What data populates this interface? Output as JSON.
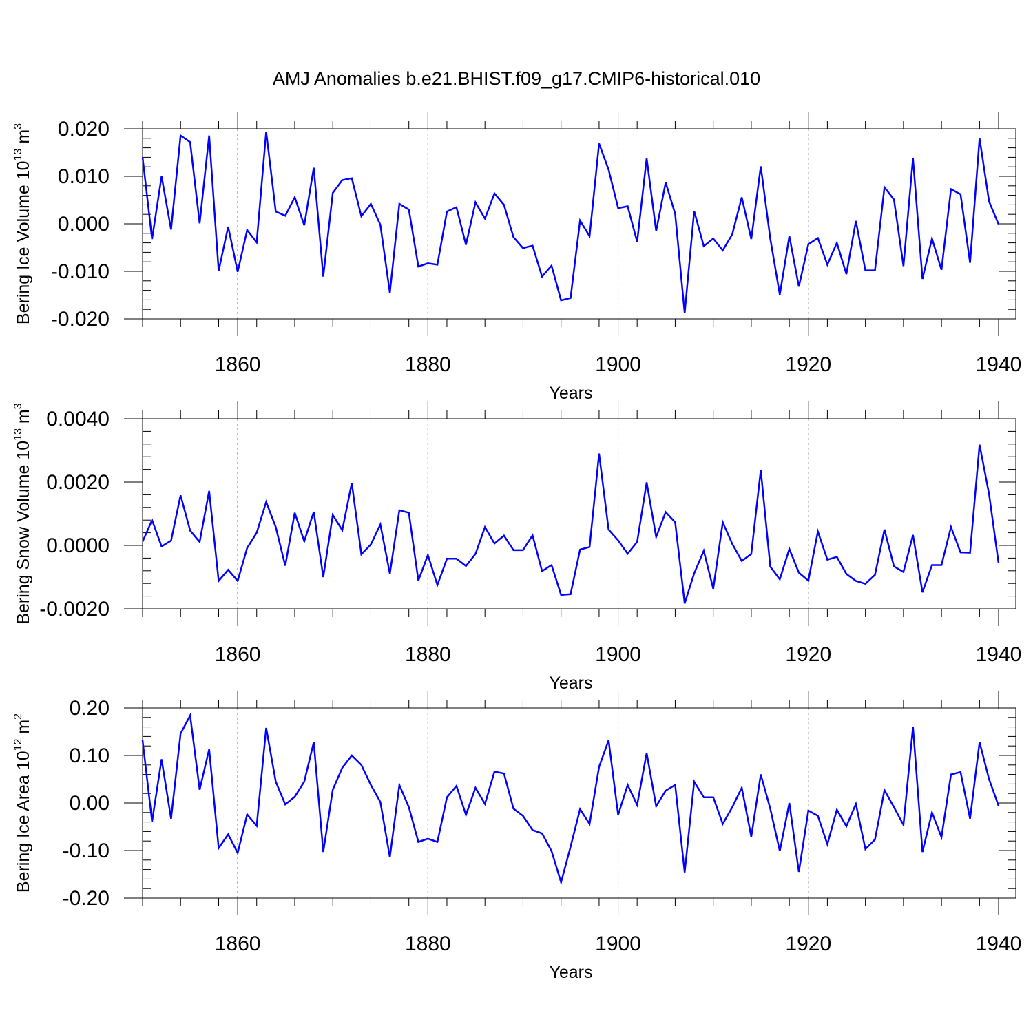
{
  "figure_title": "AMJ Anomalies b.e21.BHIST.f09_g17.CMIP6-historical.010",
  "colors": {
    "line": "#0000ff",
    "axis": "#000000",
    "grid": "#555555"
  },
  "chart_data": [
    {
      "type": "line",
      "ylabel": "Bering Ice Volume",
      "units": {
        "base": "10",
        "exp": "13",
        "unit": "m",
        "unit_exp": "3"
      },
      "xlabel": "Years",
      "xlim": [
        1850,
        1940
      ],
      "ylim": [
        -0.02,
        0.02
      ],
      "yticks": [
        -0.02,
        -0.01,
        0.0,
        0.01,
        0.02
      ],
      "ytick_labels": [
        "-0.020",
        "-0.010",
        "0.000",
        "0.010",
        "0.020"
      ],
      "xticks": [
        1860,
        1880,
        1900,
        1920,
        1940
      ],
      "xtick_labels": [
        "1860",
        "1880",
        "1900",
        "1920",
        "1940"
      ],
      "grid_x": [
        1860,
        1880,
        1900,
        1920
      ],
      "x_start": 1850,
      "values": [
        0.014,
        -0.0032,
        0.01,
        -0.0012,
        0.0186,
        0.0172,
        0.0001,
        0.0186,
        -0.0099,
        -0.0006,
        -0.0101,
        -0.0013,
        -0.0039,
        0.0194,
        0.0026,
        0.0017,
        0.0056,
        -0.0003,
        0.0118,
        -0.0111,
        0.0065,
        0.0092,
        0.0096,
        0.0016,
        0.0042,
        -0.0002,
        -0.0145,
        0.0042,
        0.003,
        -0.009,
        -0.0083,
        -0.0086,
        0.0026,
        0.0035,
        -0.0044,
        0.0045,
        0.0011,
        0.0064,
        0.004,
        -0.0028,
        -0.0051,
        -0.0046,
        -0.0111,
        -0.0088,
        -0.0161,
        -0.0156,
        0.0007,
        -0.0026,
        0.0169,
        0.0114,
        0.0033,
        0.0037,
        -0.0038,
        0.0138,
        -0.0015,
        0.0087,
        0.0021,
        -0.0188,
        0.0027,
        -0.0047,
        -0.0031,
        -0.0056,
        -0.0022,
        0.0056,
        -0.0032,
        0.0121,
        -0.0031,
        -0.0149,
        -0.0026,
        -0.0132,
        -0.0043,
        -0.003,
        -0.0086,
        -0.004,
        -0.0106,
        0.0006,
        -0.0098,
        -0.0098,
        0.0077,
        0.0051,
        -0.0089,
        0.0138,
        -0.0116,
        -0.0031,
        -0.0097,
        0.0073,
        0.0062,
        -0.0082,
        0.018,
        0.0047,
        -0.0001
      ]
    },
    {
      "type": "line",
      "ylabel": "Bering Snow Volume",
      "units": {
        "base": "10",
        "exp": "13",
        "unit": "m",
        "unit_exp": "3"
      },
      "xlabel": "Years",
      "xlim": [
        1850,
        1940
      ],
      "ylim": [
        -0.002,
        0.004
      ],
      "yticks": [
        -0.002,
        0.0,
        0.002,
        0.004
      ],
      "ytick_labels": [
        "-0.0020",
        "0.0000",
        "0.0020",
        "0.0040"
      ],
      "xticks": [
        1860,
        1880,
        1900,
        1920,
        1940
      ],
      "xtick_labels": [
        "1860",
        "1880",
        "1900",
        "1920",
        "1940"
      ],
      "grid_x": [
        1860,
        1880,
        1900,
        1920
      ],
      "x_start": 1850,
      "values": [
        0.00012,
        0.0008,
        -3e-05,
        0.00015,
        0.00158,
        0.00047,
        0.00011,
        0.00172,
        -0.00112,
        -0.00077,
        -0.00112,
        -8e-05,
        0.0004,
        0.00137,
        0.00058,
        -0.00064,
        0.00103,
        0.00013,
        0.00106,
        -0.001,
        0.00096,
        0.00048,
        0.00197,
        -0.00028,
        3e-05,
        0.00066,
        -0.00089,
        0.00111,
        0.00103,
        -0.00111,
        -0.0003,
        -0.00125,
        -0.00042,
        -0.00042,
        -0.00065,
        -0.00027,
        0.00058,
        6e-05,
        0.00031,
        -0.00015,
        -0.00015,
        0.00032,
        -0.00081,
        -0.00062,
        -0.00156,
        -0.00154,
        -0.00013,
        -5e-05,
        0.0029,
        0.0005,
        0.00016,
        -0.00026,
        0.00011,
        0.00199,
        0.00027,
        0.00105,
        0.00073,
        -0.00183,
        -0.00088,
        -0.00017,
        -0.00137,
        0.00073,
        5e-05,
        -0.00049,
        -0.00027,
        0.00238,
        -0.00067,
        -0.00107,
        -0.00011,
        -0.00086,
        -0.00111,
        0.00044,
        -0.00045,
        -0.00036,
        -0.0009,
        -0.00112,
        -0.00121,
        -0.00093,
        0.0005,
        -0.00066,
        -0.00084,
        0.00033,
        -0.00148,
        -0.00062,
        -0.00062,
        0.00058,
        -0.00022,
        -0.00023,
        0.00318,
        0.00162,
        -0.00056
      ]
    },
    {
      "type": "line",
      "ylabel": "Bering Ice Area",
      "units": {
        "base": "10",
        "exp": "12",
        "unit": "m",
        "unit_exp": "2"
      },
      "xlabel": "Years",
      "xlim": [
        1850,
        1940
      ],
      "ylim": [
        -0.2,
        0.2
      ],
      "yticks": [
        -0.2,
        -0.1,
        0.0,
        0.1,
        0.2
      ],
      "ytick_labels": [
        "-0.20",
        "-0.10",
        "0.00",
        "0.10",
        "0.20"
      ],
      "xticks": [
        1860,
        1880,
        1900,
        1920,
        1940
      ],
      "xtick_labels": [
        "1860",
        "1880",
        "1900",
        "1920",
        "1940"
      ],
      "grid_x": [
        1860,
        1880,
        1900,
        1920
      ],
      "x_start": 1850,
      "values": [
        0.132,
        -0.039,
        0.092,
        -0.033,
        0.146,
        0.184,
        0.028,
        0.113,
        -0.095,
        -0.066,
        -0.105,
        -0.024,
        -0.048,
        0.158,
        0.045,
        -0.003,
        0.013,
        0.045,
        0.128,
        -0.103,
        0.028,
        0.074,
        0.1,
        0.08,
        0.038,
        0.002,
        -0.114,
        0.038,
        -0.009,
        -0.082,
        -0.075,
        -0.082,
        0.012,
        0.036,
        -0.025,
        0.032,
        -0.002,
        0.066,
        0.062,
        -0.012,
        -0.027,
        -0.057,
        -0.064,
        -0.101,
        -0.167,
        -0.092,
        -0.013,
        -0.044,
        0.076,
        0.132,
        -0.025,
        0.038,
        -0.004,
        0.105,
        -0.007,
        0.026,
        0.038,
        -0.146,
        0.045,
        0.012,
        0.012,
        -0.044,
        -0.009,
        0.032,
        -0.071,
        0.06,
        -0.012,
        -0.101,
        0.0,
        -0.145,
        -0.016,
        -0.027,
        -0.087,
        -0.014,
        -0.049,
        -0.002,
        -0.097,
        -0.077,
        0.027,
        -0.009,
        -0.046,
        0.16,
        -0.103,
        -0.02,
        -0.072,
        0.06,
        0.065,
        -0.033,
        0.128,
        0.05,
        -0.006
      ]
    }
  ]
}
